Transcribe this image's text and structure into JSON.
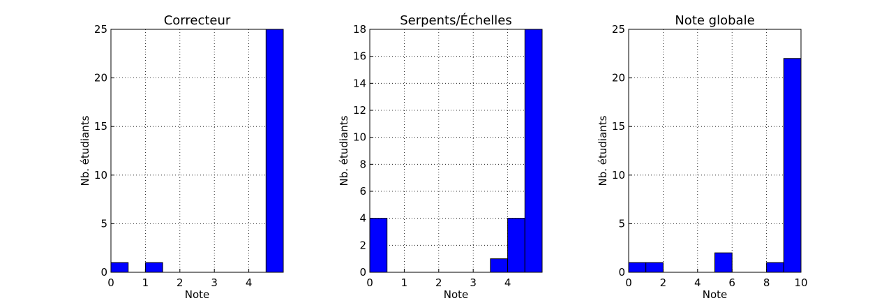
{
  "chart_data": [
    {
      "type": "histogram",
      "title": "Correcteur",
      "xlabel": "Note",
      "ylabel": "Nb. étudiants",
      "color": "#0000ff",
      "grid": true,
      "bins": [
        0,
        0.5,
        1,
        1.5,
        2,
        2.5,
        3,
        3.5,
        4,
        4.5,
        5
      ],
      "values": [
        1,
        0,
        1,
        0,
        0,
        0,
        0,
        0,
        0,
        25
      ],
      "xlim": [
        0,
        5
      ],
      "ylim": [
        0,
        25
      ],
      "xticks": [
        0,
        1,
        2,
        3,
        4
      ],
      "yticks": [
        0,
        5,
        10,
        15,
        20,
        25
      ]
    },
    {
      "type": "histogram",
      "title": "Serpents/Échelles",
      "xlabel": "Note",
      "ylabel": "Nb. étudiants",
      "color": "#0000ff",
      "grid": true,
      "bins": [
        0,
        0.5,
        1,
        1.5,
        2,
        2.5,
        3,
        3.5,
        4,
        4.5,
        5
      ],
      "values": [
        4,
        0,
        0,
        0,
        0,
        0,
        0,
        1,
        4,
        18
      ],
      "xlim": [
        0,
        5
      ],
      "ylim": [
        0,
        18
      ],
      "xticks": [
        0,
        1,
        2,
        3,
        4
      ],
      "yticks": [
        0,
        2,
        4,
        6,
        8,
        10,
        12,
        14,
        16,
        18
      ]
    },
    {
      "type": "histogram",
      "title": "Note globale",
      "xlabel": "Note",
      "ylabel": "Nb. étudiants",
      "color": "#0000ff",
      "grid": true,
      "bins": [
        0,
        1,
        2,
        3,
        4,
        5,
        6,
        7,
        8,
        9,
        10
      ],
      "values": [
        1,
        1,
        0,
        0,
        0,
        2,
        0,
        0,
        1,
        22
      ],
      "xlim": [
        0,
        10
      ],
      "ylim": [
        0,
        25
      ],
      "xticks": [
        0,
        2,
        4,
        6,
        8,
        10
      ],
      "yticks": [
        0,
        5,
        10,
        15,
        20,
        25
      ]
    }
  ]
}
